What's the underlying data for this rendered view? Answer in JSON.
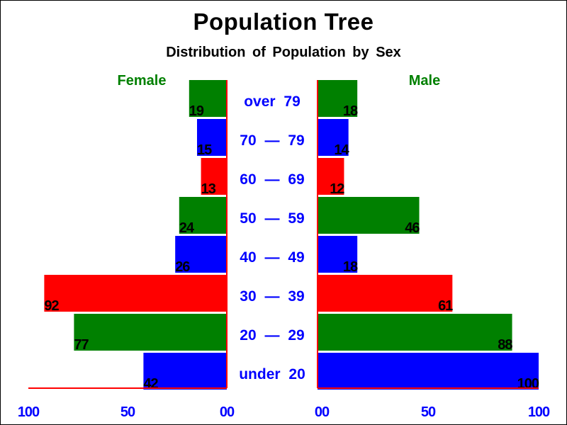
{
  "chart_data": {
    "type": "bar",
    "title": "Population Tree",
    "subtitle": "Distribution of Population by Sex",
    "categories": [
      "over 79",
      "70 — 79",
      "60 — 69",
      "50 — 59",
      "40 — 49",
      "30 — 39",
      "20 — 29",
      "under 20"
    ],
    "series": [
      {
        "name": "Female",
        "values": [
          19,
          15,
          13,
          24,
          26,
          92,
          77,
          42
        ]
      },
      {
        "name": "Male",
        "values": [
          18,
          14,
          12,
          46,
          18,
          61,
          88,
          100
        ]
      }
    ],
    "bar_colors": [
      "#008000",
      "#0000ff",
      "#ff0000",
      "#008000",
      "#0000ff",
      "#ff0000",
      "#008000",
      "#0000ff"
    ],
    "xlim": [
      0,
      100
    ],
    "female_ticks": [
      "100",
      "50",
      "00"
    ],
    "male_ticks": [
      "00",
      "50",
      "100"
    ],
    "legend_color": "#008000",
    "category_color": "#0000ff",
    "axis_color": "#ff0000",
    "tick_color": "#0000ff"
  }
}
